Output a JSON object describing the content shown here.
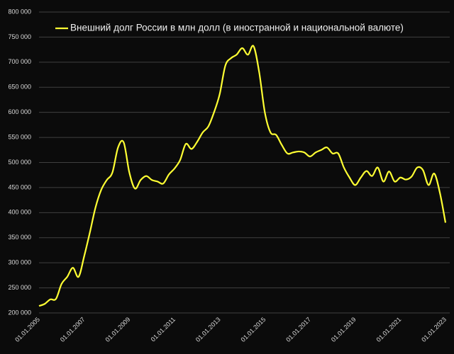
{
  "chart_data": {
    "type": "line",
    "categories": [
      "01.01.2005",
      null,
      null,
      null,
      null,
      null,
      null,
      null,
      "01.01.2007",
      null,
      null,
      null,
      null,
      null,
      null,
      null,
      "01.01.2009",
      null,
      null,
      null,
      null,
      null,
      null,
      null,
      "01.01.2011",
      null,
      null,
      null,
      null,
      null,
      null,
      null,
      "01.01.2013",
      null,
      null,
      null,
      null,
      null,
      null,
      null,
      "01.01.2015",
      null,
      null,
      null,
      null,
      null,
      null,
      null,
      "01.01.2017",
      null,
      null,
      null,
      null,
      null,
      null,
      null,
      "01.01.2019",
      null,
      null,
      null,
      null,
      null,
      null,
      null,
      "01.01.2021",
      null,
      null,
      null,
      null,
      null,
      null,
      null,
      "01.01.2023"
    ],
    "series": [
      {
        "name": "Внешний долг России в млн долл (в иностранной и национальной валюте)",
        "color": "#ffff33",
        "values": [
          214000,
          218000,
          227000,
          228000,
          258000,
          272000,
          290000,
          272000,
          313000,
          360000,
          410000,
          445000,
          465000,
          480000,
          530000,
          540000,
          480000,
          448000,
          465000,
          473000,
          465000,
          462000,
          458000,
          476000,
          488000,
          505000,
          537000,
          527000,
          541000,
          560000,
          572000,
          600000,
          636000,
          693000,
          708000,
          715000,
          728000,
          715000,
          732000,
          680000,
          600000,
          560000,
          555000,
          535000,
          518000,
          520000,
          522000,
          520000,
          512000,
          520000,
          525000,
          530000,
          518000,
          518000,
          490000,
          470000,
          455000,
          470000,
          483000,
          473000,
          490000,
          462000,
          482000,
          462000,
          470000,
          466000,
          472000,
          490000,
          485000,
          455000,
          478000,
          440000,
          380000
        ]
      }
    ],
    "ylim": [
      200000,
      800000
    ],
    "yticks": [
      {
        "value": 200000,
        "label": "200 000"
      },
      {
        "value": 250000,
        "label": "250 000"
      },
      {
        "value": 300000,
        "label": "300 000"
      },
      {
        "value": 350000,
        "label": "350 000"
      },
      {
        "value": 400000,
        "label": "400 000"
      },
      {
        "value": 450000,
        "label": "450 000"
      },
      {
        "value": 500000,
        "label": "500 000"
      },
      {
        "value": 550000,
        "label": "550 000"
      },
      {
        "value": 600000,
        "label": "600 000"
      },
      {
        "value": 650000,
        "label": "650 000"
      },
      {
        "value": 700000,
        "label": "700 000"
      },
      {
        "value": 750000,
        "label": "750 000"
      },
      {
        "value": 800000,
        "label": "800 000"
      }
    ],
    "grid": true
  }
}
